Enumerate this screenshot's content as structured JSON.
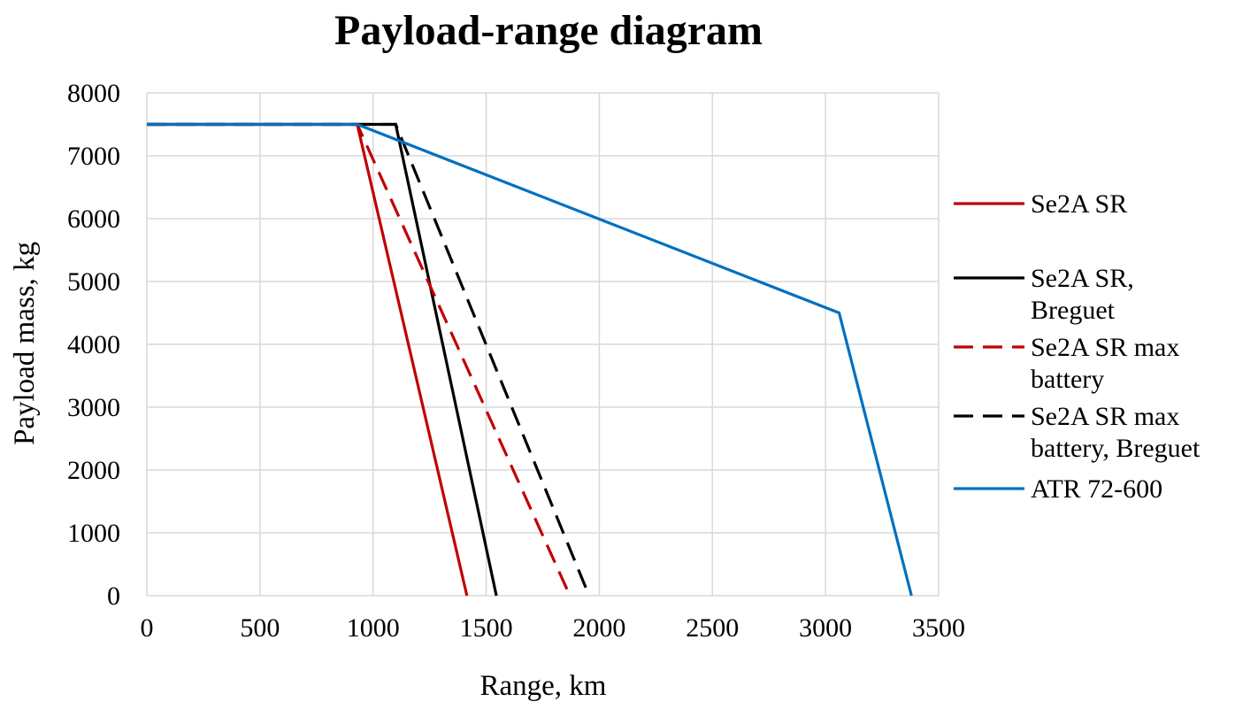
{
  "chart_data": {
    "type": "line",
    "title": "Payload-range diagram",
    "xlabel": "Range, km",
    "ylabel": "Payload mass, kg",
    "xlim": [
      0,
      3500
    ],
    "ylim": [
      0,
      8000
    ],
    "x_ticks": [
      0,
      500,
      1000,
      1500,
      2000,
      2500,
      3000,
      3500
    ],
    "y_ticks": [
      0,
      1000,
      2000,
      3000,
      4000,
      5000,
      6000,
      7000,
      8000
    ],
    "grid": true,
    "legend_position": "right",
    "series": [
      {
        "name": "Se2A SR",
        "color": "#c00000",
        "dash": "solid",
        "legend_lines": [
          "Se2A SR"
        ],
        "points": [
          [
            0,
            7500
          ],
          [
            930,
            7500
          ],
          [
            1415,
            0
          ]
        ]
      },
      {
        "name": "Se2A SR, Breguet",
        "color": "#000000",
        "dash": "solid",
        "legend_lines": [
          "Se2A SR,",
          "Breguet"
        ],
        "points": [
          [
            0,
            7500
          ],
          [
            1100,
            7500
          ],
          [
            1545,
            0
          ]
        ]
      },
      {
        "name": "Se2A SR max battery",
        "color": "#c00000",
        "dash": "dashed",
        "legend_lines": [
          "Se2A SR max",
          "battery"
        ],
        "points": [
          [
            0,
            7500
          ],
          [
            930,
            7500
          ],
          [
            1870,
            0
          ]
        ]
      },
      {
        "name": "Se2A SR max battery, Breguet",
        "color": "#000000",
        "dash": "dashed",
        "legend_lines": [
          "Se2A SR max",
          "battery, Breguet"
        ],
        "points": [
          [
            0,
            7500
          ],
          [
            1100,
            7500
          ],
          [
            1955,
            0
          ]
        ]
      },
      {
        "name": "ATR 72-600",
        "color": "#0070c0",
        "dash": "solid",
        "legend_lines": [
          "ATR 72-600"
        ],
        "points": [
          [
            0,
            7500
          ],
          [
            930,
            7500
          ],
          [
            3060,
            4500
          ],
          [
            3380,
            0
          ]
        ]
      }
    ]
  }
}
